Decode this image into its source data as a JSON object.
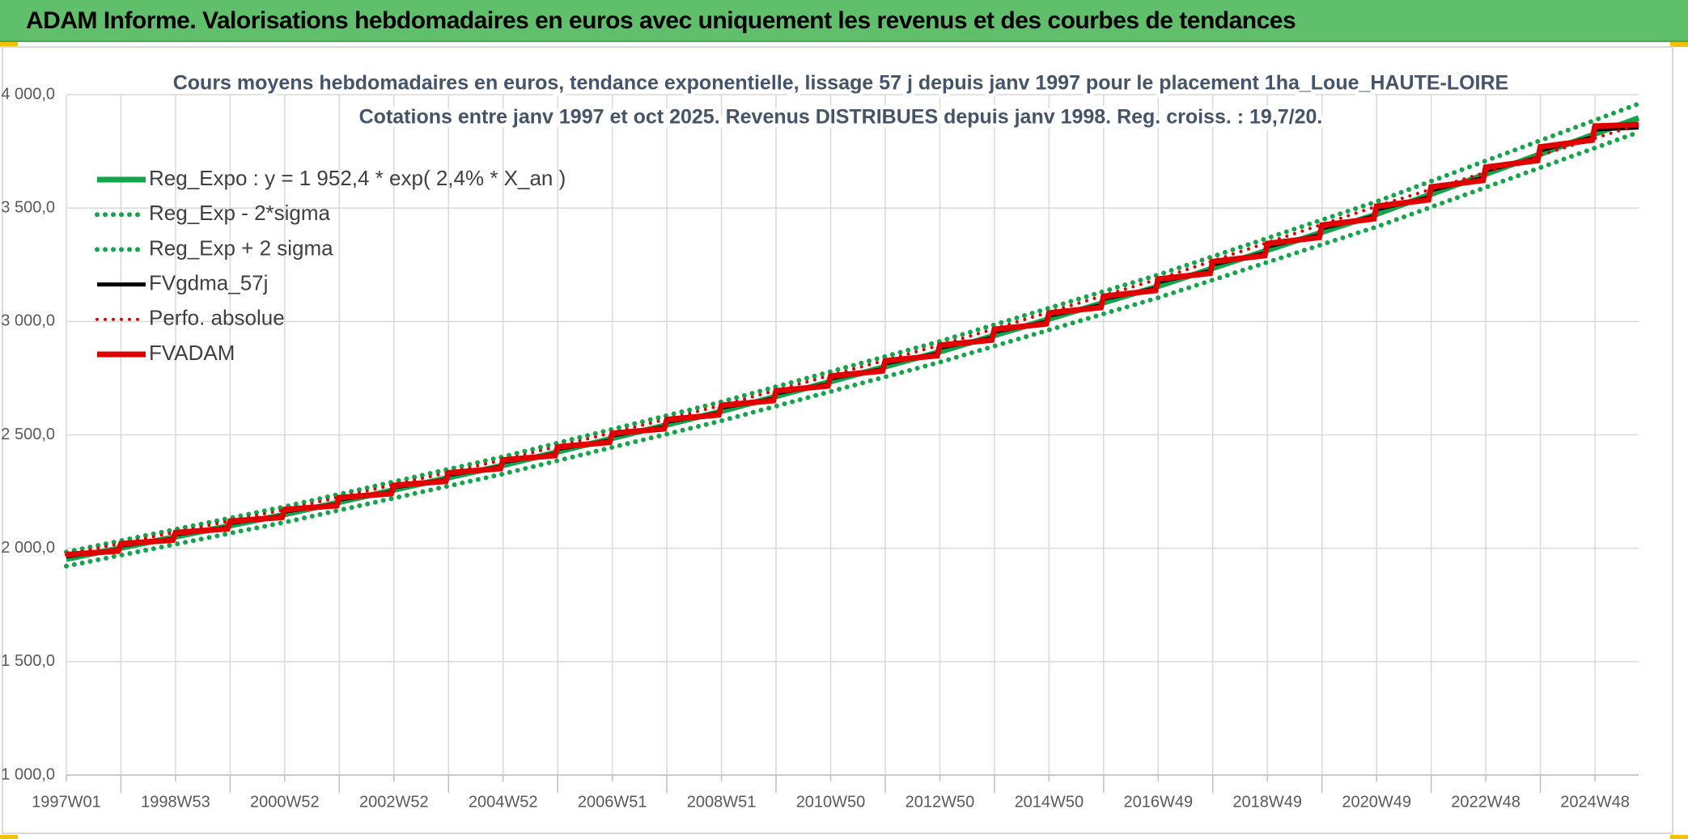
{
  "header": {
    "title": "ADAM Informe. Valorisations hebdomadaires en euros avec uniquement les revenus et des courbes de tendances"
  },
  "chart_data": {
    "type": "line",
    "title": "Cours moyens hebdomadaires en euros, tendance exponentielle, lissage 57 j depuis janv 1997 pour le placement 1ha_Loue_HAUTE-LOIRE",
    "subtitle": "Cotations entre janv 1997 et oct 2025. Revenus DISTRIBUES depuis janv 1998. Reg. croiss. : 19,7/20.",
    "xlim": [
      1997,
      2025.8
    ],
    "xticks": [
      {
        "value": 1997,
        "label": "1997W01"
      },
      {
        "value": 1999,
        "label": "1998W53"
      },
      {
        "value": 2001,
        "label": "2000W52"
      },
      {
        "value": 2003,
        "label": "2002W52"
      },
      {
        "value": 2005,
        "label": "2004W52"
      },
      {
        "value": 2007,
        "label": "2006W51"
      },
      {
        "value": 2009,
        "label": "2008W51"
      },
      {
        "value": 2011,
        "label": "2010W50"
      },
      {
        "value": 2013,
        "label": "2012W50"
      },
      {
        "value": 2015,
        "label": "2014W50"
      },
      {
        "value": 2017,
        "label": "2016W49"
      },
      {
        "value": 2019,
        "label": "2018W49"
      },
      {
        "value": 2021,
        "label": "2020W49"
      },
      {
        "value": 2023,
        "label": "2022W48"
      },
      {
        "value": 2025,
        "label": "2024W48"
      }
    ],
    "x_minor_ticks": [
      1998,
      2000,
      2002,
      2004,
      2006,
      2008,
      2010,
      2012,
      2014,
      2016,
      2018,
      2020,
      2022,
      2024
    ],
    "ylim": [
      1000,
      4000
    ],
    "yticks": [
      {
        "value": 1000,
        "label": "1 000,0"
      },
      {
        "value": 1500,
        "label": "1 500,0"
      },
      {
        "value": 2000,
        "label": "2 000,0"
      },
      {
        "value": 2500,
        "label": "2 500,0"
      },
      {
        "value": 3000,
        "label": "3 000,0"
      },
      {
        "value": 3500,
        "label": "3 500,0"
      },
      {
        "value": 4000,
        "label": "4 000,0"
      }
    ],
    "grid": true,
    "legend": "top-left",
    "series": [
      {
        "name": "Reg_Expo : y = 1 952,4 * exp( 2,4% *  X_an )",
        "color": "#12a54a",
        "style": "solid",
        "x": [
          1997,
          2001,
          2005,
          2009,
          2013,
          2017,
          2021,
          2025.8
        ],
        "values": [
          1952.4,
          2149.1,
          2365.7,
          2604.0,
          2866.4,
          3155.3,
          3473.2,
          3897.2
        ]
      },
      {
        "name": "Reg_Exp - 2*sigma",
        "color": "#12a54a",
        "style": "dotted",
        "x": [
          1997,
          2001,
          2005,
          2009,
          2013,
          2017,
          2021,
          2025.8
        ],
        "values": [
          1921.2,
          2114.7,
          2327.8,
          2562.3,
          2820.5,
          3104.8,
          3417.6,
          3834.8
        ]
      },
      {
        "name": "Reg_Exp + 2 sigma",
        "color": "#12a54a",
        "style": "dotted",
        "x": [
          1997,
          2001,
          2005,
          2009,
          2013,
          2017,
          2021,
          2025.8
        ],
        "values": [
          1983.6,
          2183.5,
          2403.6,
          2645.7,
          2912.3,
          3205.8,
          3528.8,
          3959.6
        ]
      },
      {
        "name": "FVgdma_57j",
        "color": "#000000",
        "style": "solid",
        "x": [
          1997,
          1997.95,
          1998,
          1998.95,
          1999,
          1999.95,
          2000,
          2000.95,
          2001,
          2001.95,
          2002,
          2002.95,
          2003,
          2003.95,
          2004,
          2004.95,
          2005,
          2005.95,
          2006,
          2006.95,
          2007,
          2007.95,
          2008,
          2008.95,
          2009,
          2009.95,
          2010,
          2010.95,
          2011,
          2011.95,
          2012,
          2012.95,
          2013,
          2013.95,
          2014,
          2014.95,
          2015,
          2015.95,
          2016,
          2016.95,
          2017,
          2017.95,
          2018,
          2018.95,
          2019,
          2019.95,
          2020,
          2020.95,
          2021,
          2021.95,
          2022,
          2022.95,
          2023,
          2023.95,
          2024,
          2024.95,
          2025,
          2025.8
        ],
        "values": [
          1964.1,
          1993.8,
          2011.8,
          2042.3,
          2060.7,
          2092.0,
          2110.8,
          2142.6,
          2162.0,
          2194.7,
          2214.5,
          2248.0,
          2268.3,
          2302.7,
          2323.5,
          2358.6,
          2379.9,
          2415.9,
          2437.7,
          2474.6,
          2496.9,
          2534.7,
          2557.6,
          2596.2,
          2619.6,
          2659.3,
          2683.3,
          2723.9,
          2748.5,
          2790.1,
          2815.3,
          2857.8,
          2883.6,
          2927.2,
          2953.6,
          2998.4,
          3025.4,
          3071.2,
          3098.9,
          3145.8,
          3174.2,
          3222.2,
          3251.3,
          3300.5,
          3330.3,
          3380.6,
          3411.1,
          3462.8,
          3494.0,
          3546.8,
          3578.8,
          3633.0,
          3665.8,
          3721.2,
          3754.8,
          3811.6,
          3846.0,
          3855.0
        ]
      },
      {
        "name": "Perfo. absolue",
        "color": "#e00000",
        "style": "dotted",
        "x": [
          1997,
          2001,
          2005,
          2009,
          2013,
          2017,
          2021,
          2025.8
        ],
        "values": [
          1971.9,
          2170.6,
          2389.4,
          2630.0,
          2895.1,
          3186.9,
          3507.9,
          3868.0
        ]
      },
      {
        "name": "FVADAM",
        "color": "#e00000",
        "style": "solid",
        "x": [
          1997,
          1997.95,
          1998,
          1998.95,
          1999,
          1999.95,
          2000,
          2000.95,
          2001,
          2001.95,
          2002,
          2002.95,
          2003,
          2003.95,
          2004,
          2004.95,
          2005,
          2005.95,
          2006,
          2006.95,
          2007,
          2007.95,
          2008,
          2008.95,
          2009,
          2009.95,
          2010,
          2010.95,
          2011,
          2011.95,
          2012,
          2012.95,
          2013,
          2013.95,
          2014,
          2014.95,
          2015,
          2015.95,
          2016,
          2016.95,
          2017,
          2017.95,
          2018,
          2018.95,
          2019,
          2019.95,
          2020,
          2020.95,
          2021,
          2021.95,
          2022,
          2022.95,
          2023,
          2023.95,
          2024,
          2024.95,
          2025,
          2025.8
        ],
        "values": [
          1971.9,
          1987.8,
          2019.8,
          2036.1,
          2068.9,
          2085.6,
          2119.2,
          2136.2,
          2170.6,
          2188.1,
          2223.3,
          2241.3,
          2277.3,
          2295.7,
          2332.7,
          2351.5,
          2389.4,
          2408.7,
          2447.4,
          2467.1,
          2506.8,
          2527.0,
          2567.7,
          2588.4,
          2630.0,
          2651.3,
          2694.0,
          2715.7,
          2759.4,
          2781.7,
          2826.5,
          2849.2,
          2895.1,
          2918.4,
          2965.4,
          2989.4,
          3037.5,
          3061.9,
          3111.2,
          3136.4,
          3186.9,
          3212.5,
          3264.2,
          3290.5,
          3343.5,
          3370.5,
          3424.7,
          3452.4,
          3507.9,
          3536.2,
          3593.1,
          3622.0,
          3680.3,
          3710.0,
          3769.7,
          3800.0,
          3861.3,
          3868.0
        ]
      }
    ]
  }
}
